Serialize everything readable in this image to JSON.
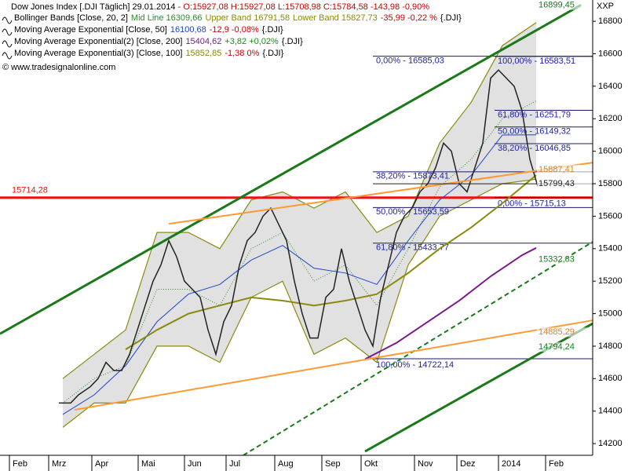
{
  "chart_data": {
    "type": "line",
    "title": "Dow Jones Index [.DJI  Täglich] 29.01.2014",
    "quote": "- O:15927,08 H:15927,08 L:15708,98 C:15784,58 -143,98 -0,90%",
    "quote_color": "#cc0000",
    "legend": [
      [
        {
          "text": "Bollinger Bands [Close, 20, 2]",
          "color": "#000000"
        },
        {
          "text": "Mid Line 16309,66",
          "color": "#2e8b2e"
        },
        {
          "text": "Upper Band 16791,58",
          "color": "#8a8a10"
        },
        {
          "text": "Lower Band 15827,73",
          "color": "#8a8a10"
        },
        {
          "text": "-35,99 -0,22 %",
          "color": "#cc0000"
        },
        {
          "text": "{.DJI}",
          "color": "#000000"
        }
      ],
      [
        {
          "text": "Moving Average Exponential [Close, 50]",
          "color": "#000000"
        },
        {
          "text": "16100,68",
          "color": "#2244cc"
        },
        {
          "text": "-12,9 -0,08%",
          "color": "#cc0000"
        },
        {
          "text": "{.DJI}",
          "color": "#000000"
        }
      ],
      [
        {
          "text": "Moving Average Exponential(2) [Close, 200]",
          "color": "#000000"
        },
        {
          "text": "15404,62",
          "color": "#7a1a8a"
        },
        {
          "text": "+3,82 +0,02%",
          "color": "#1a8a1a"
        },
        {
          "text": "{.DJI}",
          "color": "#000000"
        }
      ],
      [
        {
          "text": "Moving Average Exponential(3) [Close, 100]",
          "color": "#000000"
        },
        {
          "text": "15852,85",
          "color": "#8a8a10"
        },
        {
          "text": "-1,38 0%",
          "color": "#cc0000"
        },
        {
          "text": "{.DJI}",
          "color": "#000000"
        }
      ]
    ],
    "watermark": "© www.tradesignalonline.com",
    "y_axis_label": "XXP",
    "xlim": [
      0,
      151
    ],
    "ylim": [
      14128,
      16931
    ],
    "yticks": [
      14200,
      14400,
      14600,
      14800,
      15000,
      15200,
      15400,
      15600,
      15800,
      16000,
      16200,
      16400,
      16600,
      16800
    ],
    "xticks": [
      {
        "value": 2.4,
        "label": "Feb"
      },
      {
        "value": 12.4,
        "label": "Mrz"
      },
      {
        "value": 23.4,
        "label": "Apr"
      },
      {
        "value": 35.2,
        "label": "Mai"
      },
      {
        "value": 47,
        "label": "Jun"
      },
      {
        "value": 57.6,
        "label": "Jul"
      },
      {
        "value": 70,
        "label": "Aug"
      },
      {
        "value": 82,
        "label": "Sep"
      },
      {
        "value": 92,
        "label": "Okt"
      },
      {
        "value": 105.6,
        "label": "Nov"
      },
      {
        "value": 116.4,
        "label": "Dez"
      },
      {
        "value": 127,
        "label": "2014"
      },
      {
        "value": 139,
        "label": "Feb"
      }
    ],
    "series": [
      {
        "color": "#222222",
        "x": [
          15,
          18,
          20,
          23,
          25,
          27,
          29,
          31,
          33,
          35,
          37,
          39,
          41,
          43,
          45,
          47,
          49,
          51,
          53,
          55,
          57,
          59,
          61,
          63,
          65,
          67,
          69,
          71,
          73,
          75,
          77,
          79,
          81,
          83,
          85,
          87,
          89,
          91,
          93,
          95,
          97,
          99,
          101,
          103,
          105,
          107,
          109,
          111,
          113,
          115,
          117,
          119,
          121,
          123,
          125,
          127,
          129,
          131,
          133,
          135,
          137
        ],
        "values": [
          14450,
          14450,
          14500,
          14550,
          14600,
          14700,
          14650,
          14650,
          14750,
          14900,
          15050,
          15200,
          15300,
          15450,
          15350,
          15200,
          15150,
          15100,
          14900,
          14750,
          14950,
          15050,
          15300,
          15450,
          15500,
          15600,
          15650,
          15550,
          15450,
          15200,
          15000,
          14850,
          14850,
          15100,
          15150,
          15400,
          15200,
          15050,
          14900,
          14800,
          15100,
          15300,
          15500,
          15600,
          15650,
          15750,
          15800,
          15900,
          16050,
          16000,
          15800,
          15750,
          15900,
          16050,
          16450,
          16500,
          16450,
          16400,
          16250,
          15950,
          15784.58
        ]
      }
    ],
    "bollinger": {
      "x": [
        16,
        24,
        32,
        40,
        48,
        56,
        64,
        72,
        80,
        88,
        96,
        104,
        112,
        120,
        128,
        136.6
      ],
      "upper": [
        14600,
        14750,
        14900,
        15500,
        15500,
        15400,
        15700,
        15750,
        15650,
        15750,
        15500,
        15600,
        16050,
        16300,
        16650,
        16791.58
      ],
      "mid": [
        14450,
        14600,
        14680,
        15150,
        15150,
        15050,
        15400,
        15500,
        15200,
        15300,
        15050,
        15400,
        15780,
        15950,
        16200,
        16309.66
      ],
      "lower": [
        14300,
        14450,
        14450,
        14800,
        14800,
        14700,
        15100,
        15200,
        14750,
        14850,
        14700,
        15300,
        15600,
        15700,
        15800,
        15827.73
      ],
      "band_color": "#8a8a10",
      "mid_color": "#2e8b2e",
      "fill": "#d9d9d9"
    },
    "indicators": [
      {
        "color": "#2244cc",
        "x": [
          16,
          24,
          32,
          40,
          48,
          56,
          64,
          72,
          80,
          88,
          96,
          104,
          112,
          120,
          128,
          136.6
        ],
        "values": [
          14380,
          14500,
          14680,
          14950,
          15120,
          15180,
          15330,
          15420,
          15280,
          15250,
          15180,
          15450,
          15700,
          15850,
          16100,
          16100.68
        ]
      },
      {
        "color": "#7a1a8a",
        "x": [
          93,
          101,
          109,
          117,
          125,
          133,
          136.6
        ],
        "values": [
          14720,
          14820,
          14950,
          15080,
          15230,
          15360,
          15404.62
        ]
      },
      {
        "color": "#8a8a10",
        "x": [
          16,
          24,
          32,
          40,
          48,
          56,
          64,
          72,
          80,
          88,
          96,
          104,
          112,
          120,
          128,
          136.6
        ],
        "values": [
          null,
          null,
          14780,
          14900,
          15000,
          15050,
          15100,
          15080,
          15050,
          15080,
          15120,
          15250,
          15400,
          15530,
          15680,
          15852.85
        ]
      }
    ],
    "trendlines": [
      {
        "color": "#1a7a1a",
        "width": 3,
        "dash": false,
        "points": [
          [
            0,
            14876
          ],
          [
            148,
            16900
          ]
        ],
        "tag": {
          "value": 16899.45,
          "label": "16899,45"
        }
      },
      {
        "color": "#1a7a1a",
        "width": 3,
        "dash": false,
        "points": [
          [
            93,
            14152
          ],
          [
            151,
            14939
          ]
        ],
        "tag": {
          "value": 14794.24,
          "label": "14794,24"
        }
      },
      {
        "color": "#1a7a1a",
        "width": 2,
        "dash": true,
        "points": [
          [
            62,
            14128
          ],
          [
            151,
            15442
          ]
        ],
        "tag": {
          "value": 15332.83,
          "label": "15332,83"
        }
      },
      {
        "color": "#ff9933",
        "width": 2,
        "dash": false,
        "points": [
          [
            19,
            14408
          ],
          [
            151,
            14959
          ]
        ],
        "tag": {
          "value": 14885.29,
          "label": "14885,29"
        }
      },
      {
        "color": "#ff9933",
        "width": 2,
        "dash": false,
        "points": [
          [
            43,
            15553
          ],
          [
            151,
            15930
          ]
        ],
        "tag": {
          "value": 15887.41,
          "label": "15887,41"
        }
      },
      {
        "color": "#222222",
        "width": 1,
        "dash": false,
        "points": [
          [
            95,
            15799.43
          ],
          [
            151,
            15799.43
          ]
        ],
        "tag": {
          "value": 15799.43,
          "label": "15799,43"
        }
      }
    ],
    "support": {
      "value": 15714.28,
      "label": "15714,28",
      "color": "#ee1111"
    },
    "fibonacci": [
      {
        "color": "#1a1a6a",
        "text_color": "#2222aa",
        "xlim": [
          95,
          151
        ],
        "levels": [
          {
            "value": 16585.03,
            "label": "0,00% - 16585,03"
          },
          {
            "value": 15873.41,
            "label": "38,20% - 15873,41"
          },
          {
            "value": 15653.59,
            "label": "50,00% - 15653,59"
          },
          {
            "value": 15433.77,
            "label": "61,80% - 15433,77"
          },
          {
            "value": 14722.14,
            "label": "100,00% - 14722,14"
          }
        ]
      },
      {
        "color": "#1a1a6a",
        "text_color": "#2222aa",
        "xlim": [
          126,
          151
        ],
        "levels": [
          {
            "value": 16583.51,
            "label": "100,00% - 16583,51"
          },
          {
            "value": 16251.79,
            "label": "61,80% - 16251,79"
          },
          {
            "value": 16149.32,
            "label": "50,00% - 16149,32"
          },
          {
            "value": 16046.85,
            "label": "38,20% - 16046,85"
          },
          {
            "value": 15715.13,
            "label": "0,00% - 15715,13"
          }
        ]
      }
    ]
  }
}
